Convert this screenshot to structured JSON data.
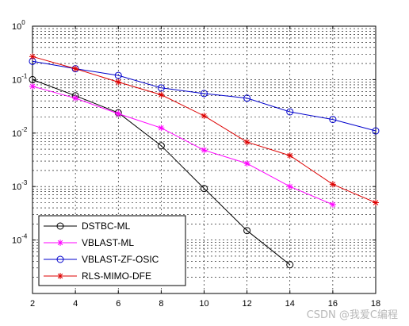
{
  "chart_data": {
    "type": "line",
    "title": "",
    "xlabel": "",
    "ylabel": "",
    "xlim": [
      2,
      18
    ],
    "ylim": [
      1e-05,
      1
    ],
    "yscale": "log",
    "grid": true,
    "legend_position": "bottom-left",
    "x_ticks": [
      "2",
      "4",
      "6",
      "8",
      "10",
      "12",
      "14",
      "16",
      "18"
    ],
    "y_ticks": [
      {
        "base": "10",
        "exp": "0",
        "value": 1
      },
      {
        "base": "10",
        "exp": "-1",
        "value": 0.1
      },
      {
        "base": "10",
        "exp": "-2",
        "value": 0.01
      },
      {
        "base": "10",
        "exp": "-3",
        "value": 0.001
      },
      {
        "base": "10",
        "exp": "-4",
        "value": 0.0001
      }
    ],
    "series": [
      {
        "name": "DSTBC-ML",
        "color": "#000000",
        "marker": "circle",
        "x": [
          2,
          4,
          6,
          8,
          10,
          12,
          14
        ],
        "y": [
          0.1,
          0.05,
          0.024,
          0.0058,
          0.00092,
          0.00015,
          3.45e-05
        ]
      },
      {
        "name": "VBLAST-ML",
        "color": "#ff00ff",
        "marker": "star",
        "x": [
          2,
          4,
          6,
          8,
          10,
          12,
          14,
          16
        ],
        "y": [
          0.075,
          0.045,
          0.023,
          0.0125,
          0.0048,
          0.0027,
          0.001,
          0.00046
        ]
      },
      {
        "name": "VBLAST-ZF-OSIC",
        "color": "#0000cc",
        "marker": "circle",
        "x": [
          2,
          4,
          6,
          8,
          10,
          12,
          14,
          16,
          18
        ],
        "y": [
          0.22,
          0.16,
          0.12,
          0.07,
          0.055,
          0.045,
          0.025,
          0.018,
          0.011
        ]
      },
      {
        "name": "RLS-MIMO-DFE",
        "color": "#dd0000",
        "marker": "star",
        "x": [
          2,
          4,
          6,
          8,
          10,
          12,
          14,
          16,
          18
        ],
        "y": [
          0.27,
          0.16,
          0.09,
          0.052,
          0.021,
          0.0068,
          0.0038,
          0.0011,
          0.0005
        ]
      }
    ]
  },
  "watermark": "CSDN @我爱C编程"
}
